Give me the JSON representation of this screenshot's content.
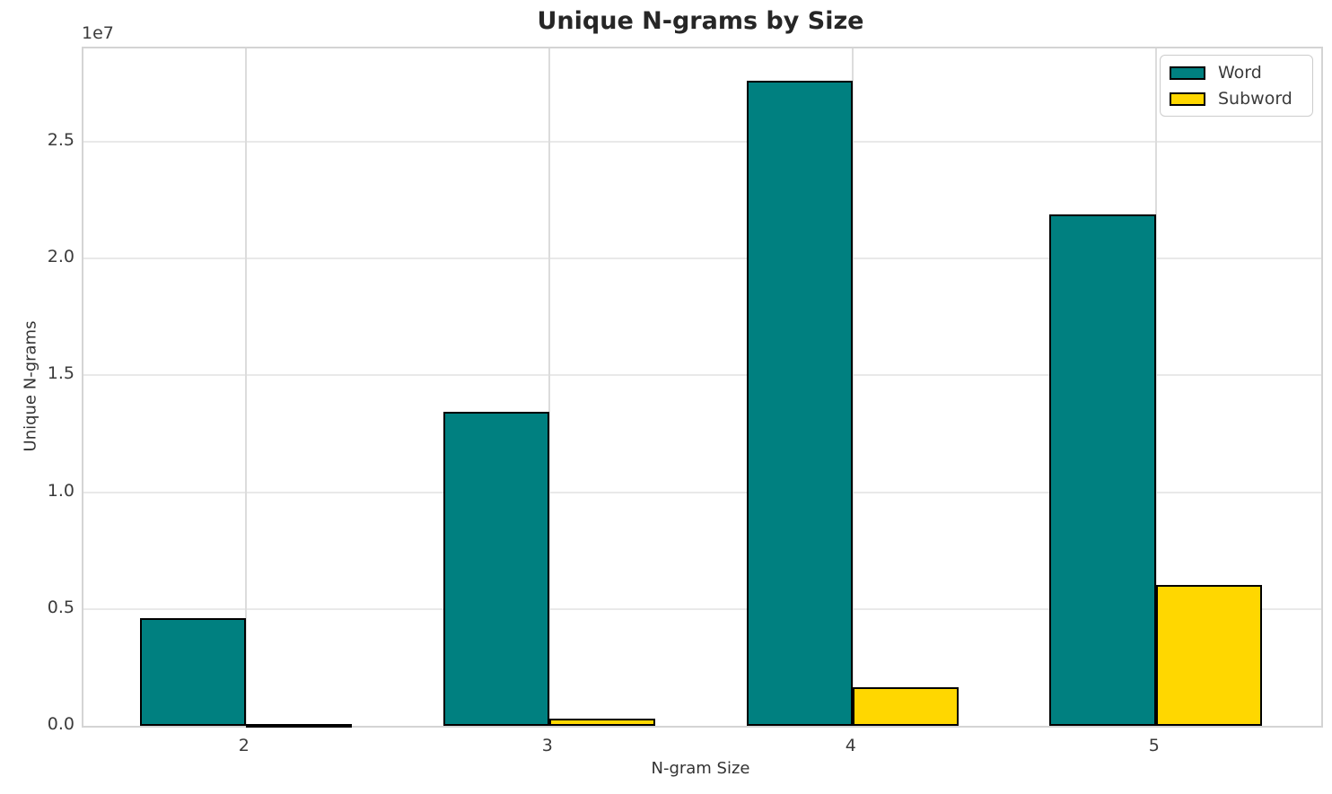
{
  "chart_data": {
    "type": "bar",
    "title": "Unique N-grams by Size",
    "xlabel": "N-gram Size",
    "ylabel": "Unique N-grams",
    "offset_text": "1e7",
    "categories": [
      "2",
      "3",
      "4",
      "5"
    ],
    "series": [
      {
        "name": "Word",
        "color": "#008080",
        "values": [
          4600000,
          13450000,
          27600000,
          21900000
        ]
      },
      {
        "name": "Subword",
        "color": "#FFD700",
        "values": [
          60000,
          290000,
          1650000,
          6020000
        ]
      }
    ],
    "bar_edge_color": "#000000",
    "ylim": [
      0,
      29000000
    ],
    "ytick_values": [
      0,
      5000000,
      10000000,
      15000000,
      20000000,
      25000000
    ],
    "ytick_labels": [
      "0.0",
      "0.5",
      "1.0",
      "1.5",
      "2.0",
      "2.5"
    ],
    "grid": true,
    "legend_position": "upper right"
  }
}
